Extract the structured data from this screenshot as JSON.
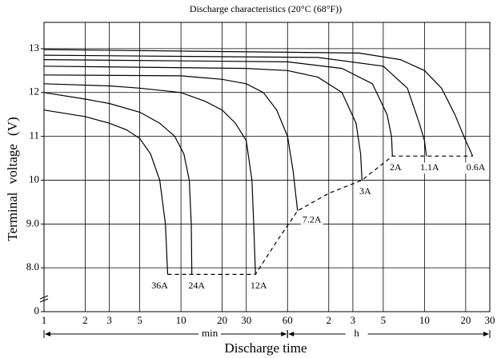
{
  "chart_data": {
    "type": "line",
    "title": "Discharge characteristics (20°C (68°F))",
    "x_label": "Discharge time",
    "y_label": "Terminal voltage (V)",
    "x_unit_labels": [
      "min",
      "h"
    ],
    "x_log": true,
    "xlim": [
      1,
      1800
    ],
    "xticks": [
      1,
      2,
      3,
      5,
      10,
      20,
      30,
      60,
      {
        "value": 120,
        "label": "2"
      },
      {
        "value": 180,
        "label": "3"
      },
      {
        "value": 300,
        "label": "5"
      },
      {
        "value": 600,
        "label": "10"
      },
      {
        "value": 1200,
        "label": "20"
      },
      {
        "value": 1800,
        "label": "30"
      }
    ],
    "ylim": [
      0,
      13.6
    ],
    "y_break": [
      0,
      7
    ],
    "yticks": [
      0,
      {
        "value": 8,
        "label": "8.0"
      },
      {
        "value": 9,
        "label": "9.0"
      },
      10,
      11,
      12,
      13
    ],
    "grid": true,
    "color": "#000000",
    "series": [
      {
        "name": "36A",
        "x": [
          1,
          2,
          3,
          4,
          5,
          6,
          7,
          7.7,
          8
        ],
        "values": [
          11.6,
          11.45,
          11.3,
          11.15,
          10.95,
          10.6,
          10.0,
          9.0,
          7.85
        ]
      },
      {
        "name": "24A",
        "x": [
          1,
          2,
          3,
          5,
          7,
          9,
          10.5,
          11.5,
          11.9,
          12
        ],
        "values": [
          12.0,
          11.85,
          11.75,
          11.55,
          11.3,
          11.0,
          10.6,
          10.0,
          9.0,
          7.85
        ]
      },
      {
        "name": "12A",
        "x": [
          1,
          3,
          5,
          10,
          15,
          20,
          25,
          30,
          33,
          34,
          35
        ],
        "values": [
          12.2,
          12.15,
          12.1,
          12.0,
          11.8,
          11.6,
          11.3,
          10.9,
          10.0,
          9.0,
          7.85
        ]
      },
      {
        "name": "7.2A",
        "x": [
          1,
          10,
          20,
          30,
          40,
          50,
          60,
          66,
          71
        ],
        "values": [
          12.4,
          12.38,
          12.3,
          12.2,
          12.0,
          11.6,
          11.0,
          10.2,
          9.3
        ]
      },
      {
        "name": "3A",
        "x": [
          1,
          30,
          60,
          100,
          150,
          190,
          205,
          210
        ],
        "values": [
          12.6,
          12.55,
          12.5,
          12.35,
          12.0,
          11.3,
          10.6,
          10.0
        ]
      },
      {
        "name": "2A",
        "x": [
          1,
          60,
          150,
          250,
          320,
          345,
          350
        ],
        "values": [
          12.75,
          12.7,
          12.55,
          12.2,
          11.5,
          11.0,
          10.55
        ]
      },
      {
        "name": "1.1A",
        "x": [
          1,
          100,
          300,
          450,
          550,
          600,
          620
        ],
        "values": [
          12.85,
          12.8,
          12.6,
          12.1,
          11.3,
          10.9,
          10.55
        ]
      },
      {
        "name": "0.6A",
        "x": [
          1,
          200,
          400,
          600,
          800,
          1000,
          1200,
          1350
        ],
        "values": [
          12.98,
          12.9,
          12.75,
          12.5,
          12.1,
          11.5,
          10.9,
          10.55
        ]
      }
    ],
    "end_line": {
      "style": "dashed",
      "x": [
        8,
        35,
        50,
        71,
        120,
        210,
        350,
        1350
      ],
      "values": [
        7.85,
        7.85,
        8.6,
        9.3,
        9.7,
        10.0,
        10.55,
        10.55
      ]
    }
  }
}
